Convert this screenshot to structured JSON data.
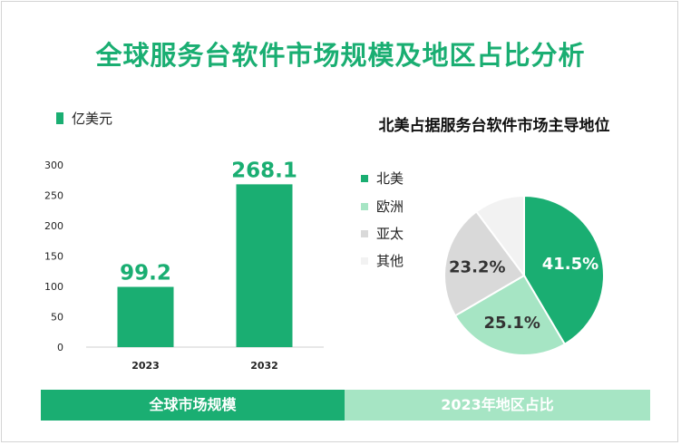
{
  "title": "全球服务台软件市场规模及地区占比分析",
  "colors": {
    "accent": "#1aae72",
    "europe": "#a6e5c4",
    "asia_pacific": "#d9d9d9",
    "other": "#f2f2f2",
    "footer_left": "#1aae72",
    "footer_right": "#a6e5c4"
  },
  "bar_legend": "亿美元",
  "pie_title": "北美占据服务台软件市场主导地位",
  "footer": {
    "left": "全球市场规模",
    "right": "2023年地区占比"
  },
  "chart_data": [
    {
      "type": "bar",
      "categories": [
        "2023",
        "2032"
      ],
      "series": [
        {
          "name": "亿美元",
          "values": [
            99.2,
            268.1
          ]
        }
      ],
      "ylim": [
        0,
        300
      ],
      "yticks": [
        0,
        50,
        100,
        150,
        200,
        250,
        300
      ],
      "data_labels": [
        "99.2",
        "268.1"
      ],
      "grid": false
    },
    {
      "type": "pie",
      "labels": [
        "北美",
        "欧洲",
        "亚太",
        "其他"
      ],
      "values": [
        41.5,
        25.1,
        23.2,
        10.2
      ],
      "data_labels": [
        "41.5%",
        "25.1%",
        "23.2%",
        ""
      ],
      "legend": "left"
    }
  ]
}
